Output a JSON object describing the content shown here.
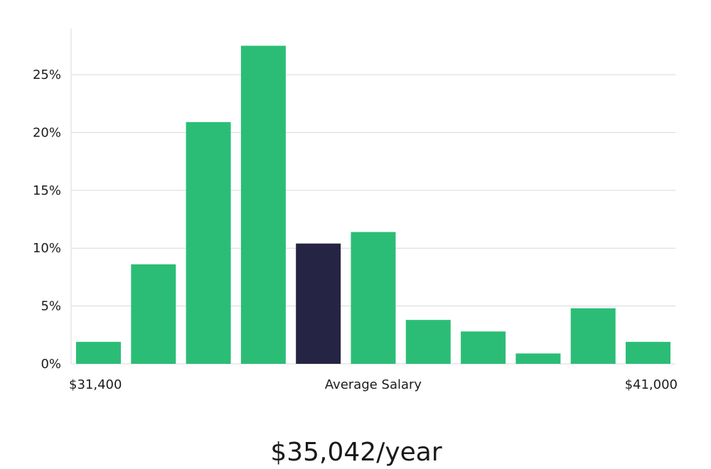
{
  "colors": {
    "bar": "#2bbd76",
    "highlight_bar": "#262444",
    "grid": "#d9d9d9",
    "axis": "#d9d9d9",
    "text": "#1c1c1c"
  },
  "chart_data": {
    "type": "bar",
    "title": "",
    "xlabel": "Average Salary",
    "ylabel": "",
    "x_range_labels": {
      "min": "$31,400",
      "max": "$41,000"
    },
    "y_ticks": [
      "0%",
      "5%",
      "10%",
      "15%",
      "20%",
      "25%"
    ],
    "y_tick_values": [
      0,
      5,
      10,
      15,
      20,
      25
    ],
    "ylim": [
      0,
      29
    ],
    "values": [
      1.9,
      8.6,
      20.9,
      27.5,
      10.4,
      11.4,
      3.8,
      2.8,
      0.9,
      4.8,
      1.9
    ],
    "highlight_index": 4,
    "grid": true
  },
  "summary": {
    "salary_text": "$35,042/year"
  }
}
